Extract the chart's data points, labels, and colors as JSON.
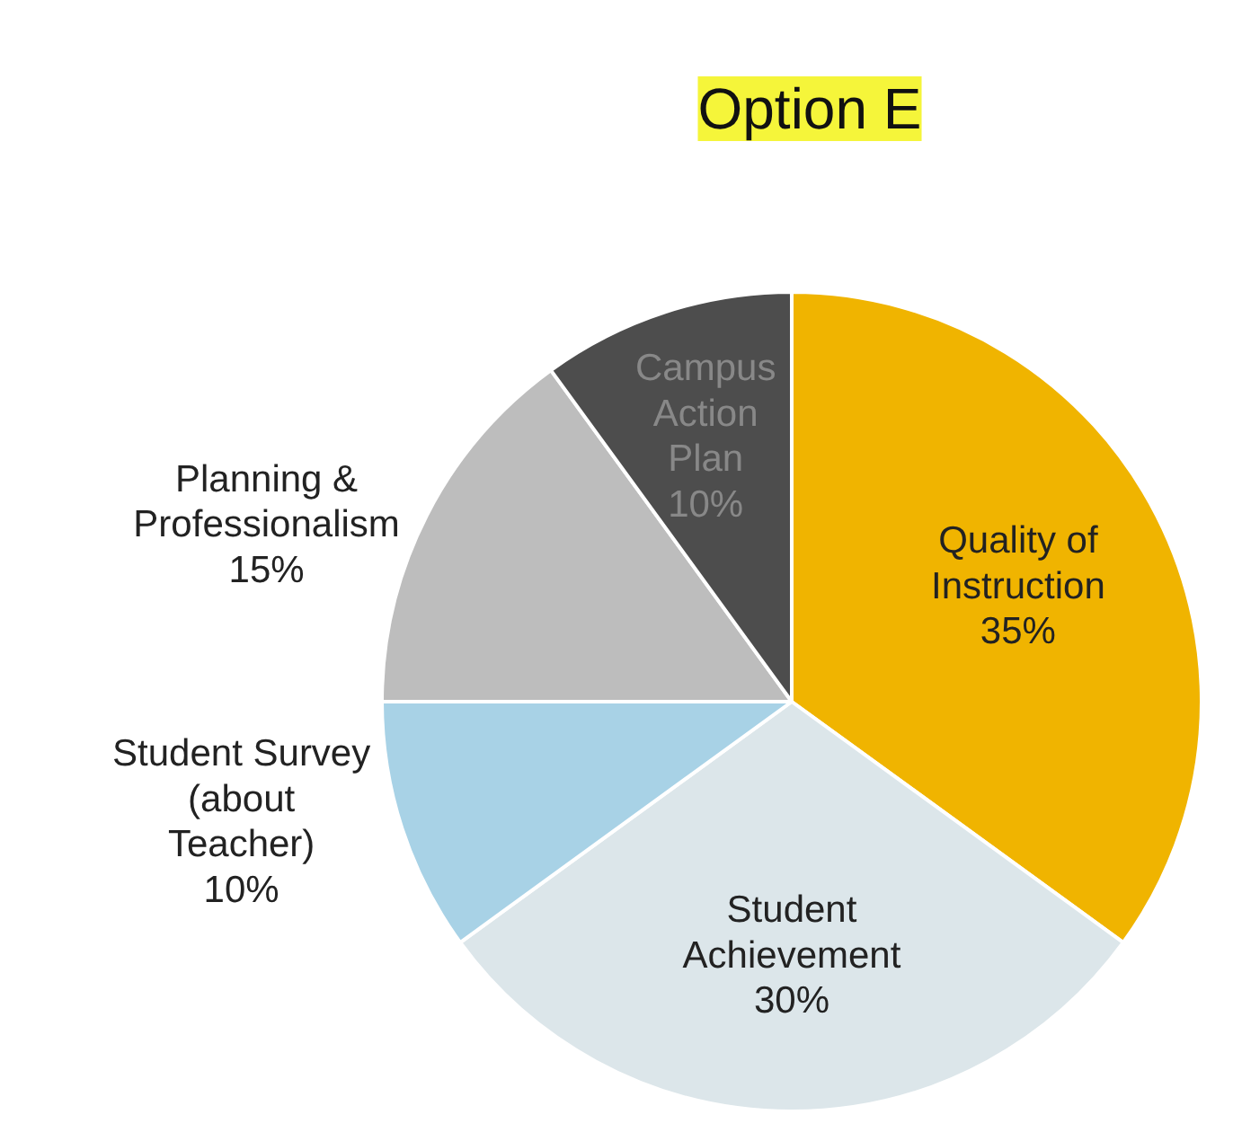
{
  "chart_data": {
    "type": "pie",
    "title": "Option E",
    "categories": [
      "Quality of Instruction",
      "Student Achievement",
      "Student Survey (about Teacher)",
      "Planning & Professionalism",
      "Campus Action Plan"
    ],
    "values": [
      35,
      30,
      10,
      15,
      10
    ],
    "value_labels": [
      "35%",
      "30%",
      "10%",
      "15%",
      "10%"
    ],
    "colors": [
      "#f0b400",
      "#dce6ea",
      "#a8d2e6",
      "#bdbdbd",
      "#4d4d4d"
    ],
    "legend": false
  }
}
